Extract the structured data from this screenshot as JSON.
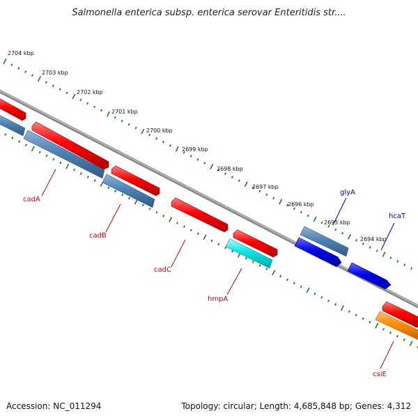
{
  "title": "Salmonella enterica subsp. enterica serovar Enteritidis str....",
  "footer": {
    "accession": "Accession: NC_011294",
    "summary": "Topology: circular; Length: 4,685,848 bp; Genes: 4,312"
  },
  "colors": {
    "background": "#ffffff",
    "backbone": "#8a8a8a",
    "ticks": "#1f7a1f",
    "label_red": "#cc0000",
    "label_blue": "#0000aa",
    "feature_red": "#ff0000",
    "feature_steelblue": "#4f82b4",
    "feature_blue": "#0000ee",
    "feature_cyan": "#00e5e5",
    "feature_orange": "#ff8c00"
  },
  "scale": {
    "labels": [
      "2704 kbp",
      "2703 kbp",
      "2702 kbp",
      "2701 kbp",
      "2700 kbp",
      "2699 kbp",
      "2698 kbp",
      "2697 kbp",
      "2696 kbp",
      "2695 kbp",
      "2694 kbp"
    ]
  },
  "genes": [
    {
      "name": "cadA",
      "color": "#cc0000"
    },
    {
      "name": "cadB",
      "color": "#cc0000"
    },
    {
      "name": "cadC",
      "color": "#cc0000"
    },
    {
      "name": "hmpA",
      "color": "#cc0000"
    },
    {
      "name": "glyA",
      "color": "#0000aa"
    },
    {
      "name": "hcaT",
      "color": "#0000aa"
    },
    {
      "name": "csiE",
      "color": "#cc0000"
    }
  ]
}
